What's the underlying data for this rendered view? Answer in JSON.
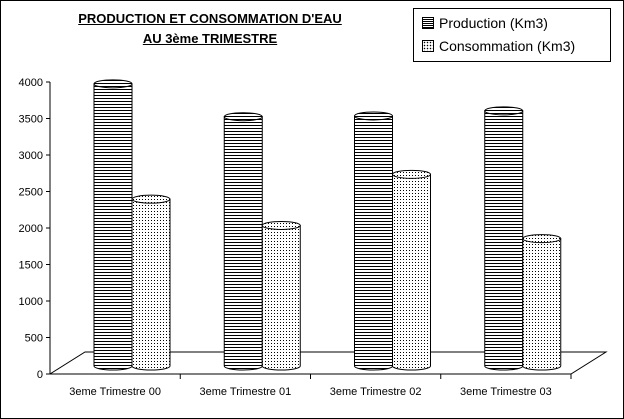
{
  "chart_data": {
    "type": "bar",
    "title_line1": "PRODUCTION ET CONSOMMATION D'EAU",
    "title_line2": "AU 3ème TRIMESTRE",
    "categories": [
      "3eme Trimestre 00",
      "3eme Trimestre 01",
      "3eme Trimestre 02",
      "3eme Trimestre 03"
    ],
    "series": [
      {
        "name": "Production (Km3)",
        "values": [
          3920,
          3470,
          3480,
          3550
        ],
        "pattern": "horizontal-lines"
      },
      {
        "name": "Consommation (Km3)",
        "values": [
          2340,
          1980,
          2680,
          1800
        ],
        "pattern": "dots"
      }
    ],
    "ylim": [
      0,
      4000
    ],
    "yticks": [
      "0",
      "500",
      "1000",
      "1500",
      "2000",
      "2500",
      "3000",
      "3500",
      "4000"
    ],
    "grid": false,
    "legend_position": "top-right",
    "style": "3d-cylinder"
  }
}
